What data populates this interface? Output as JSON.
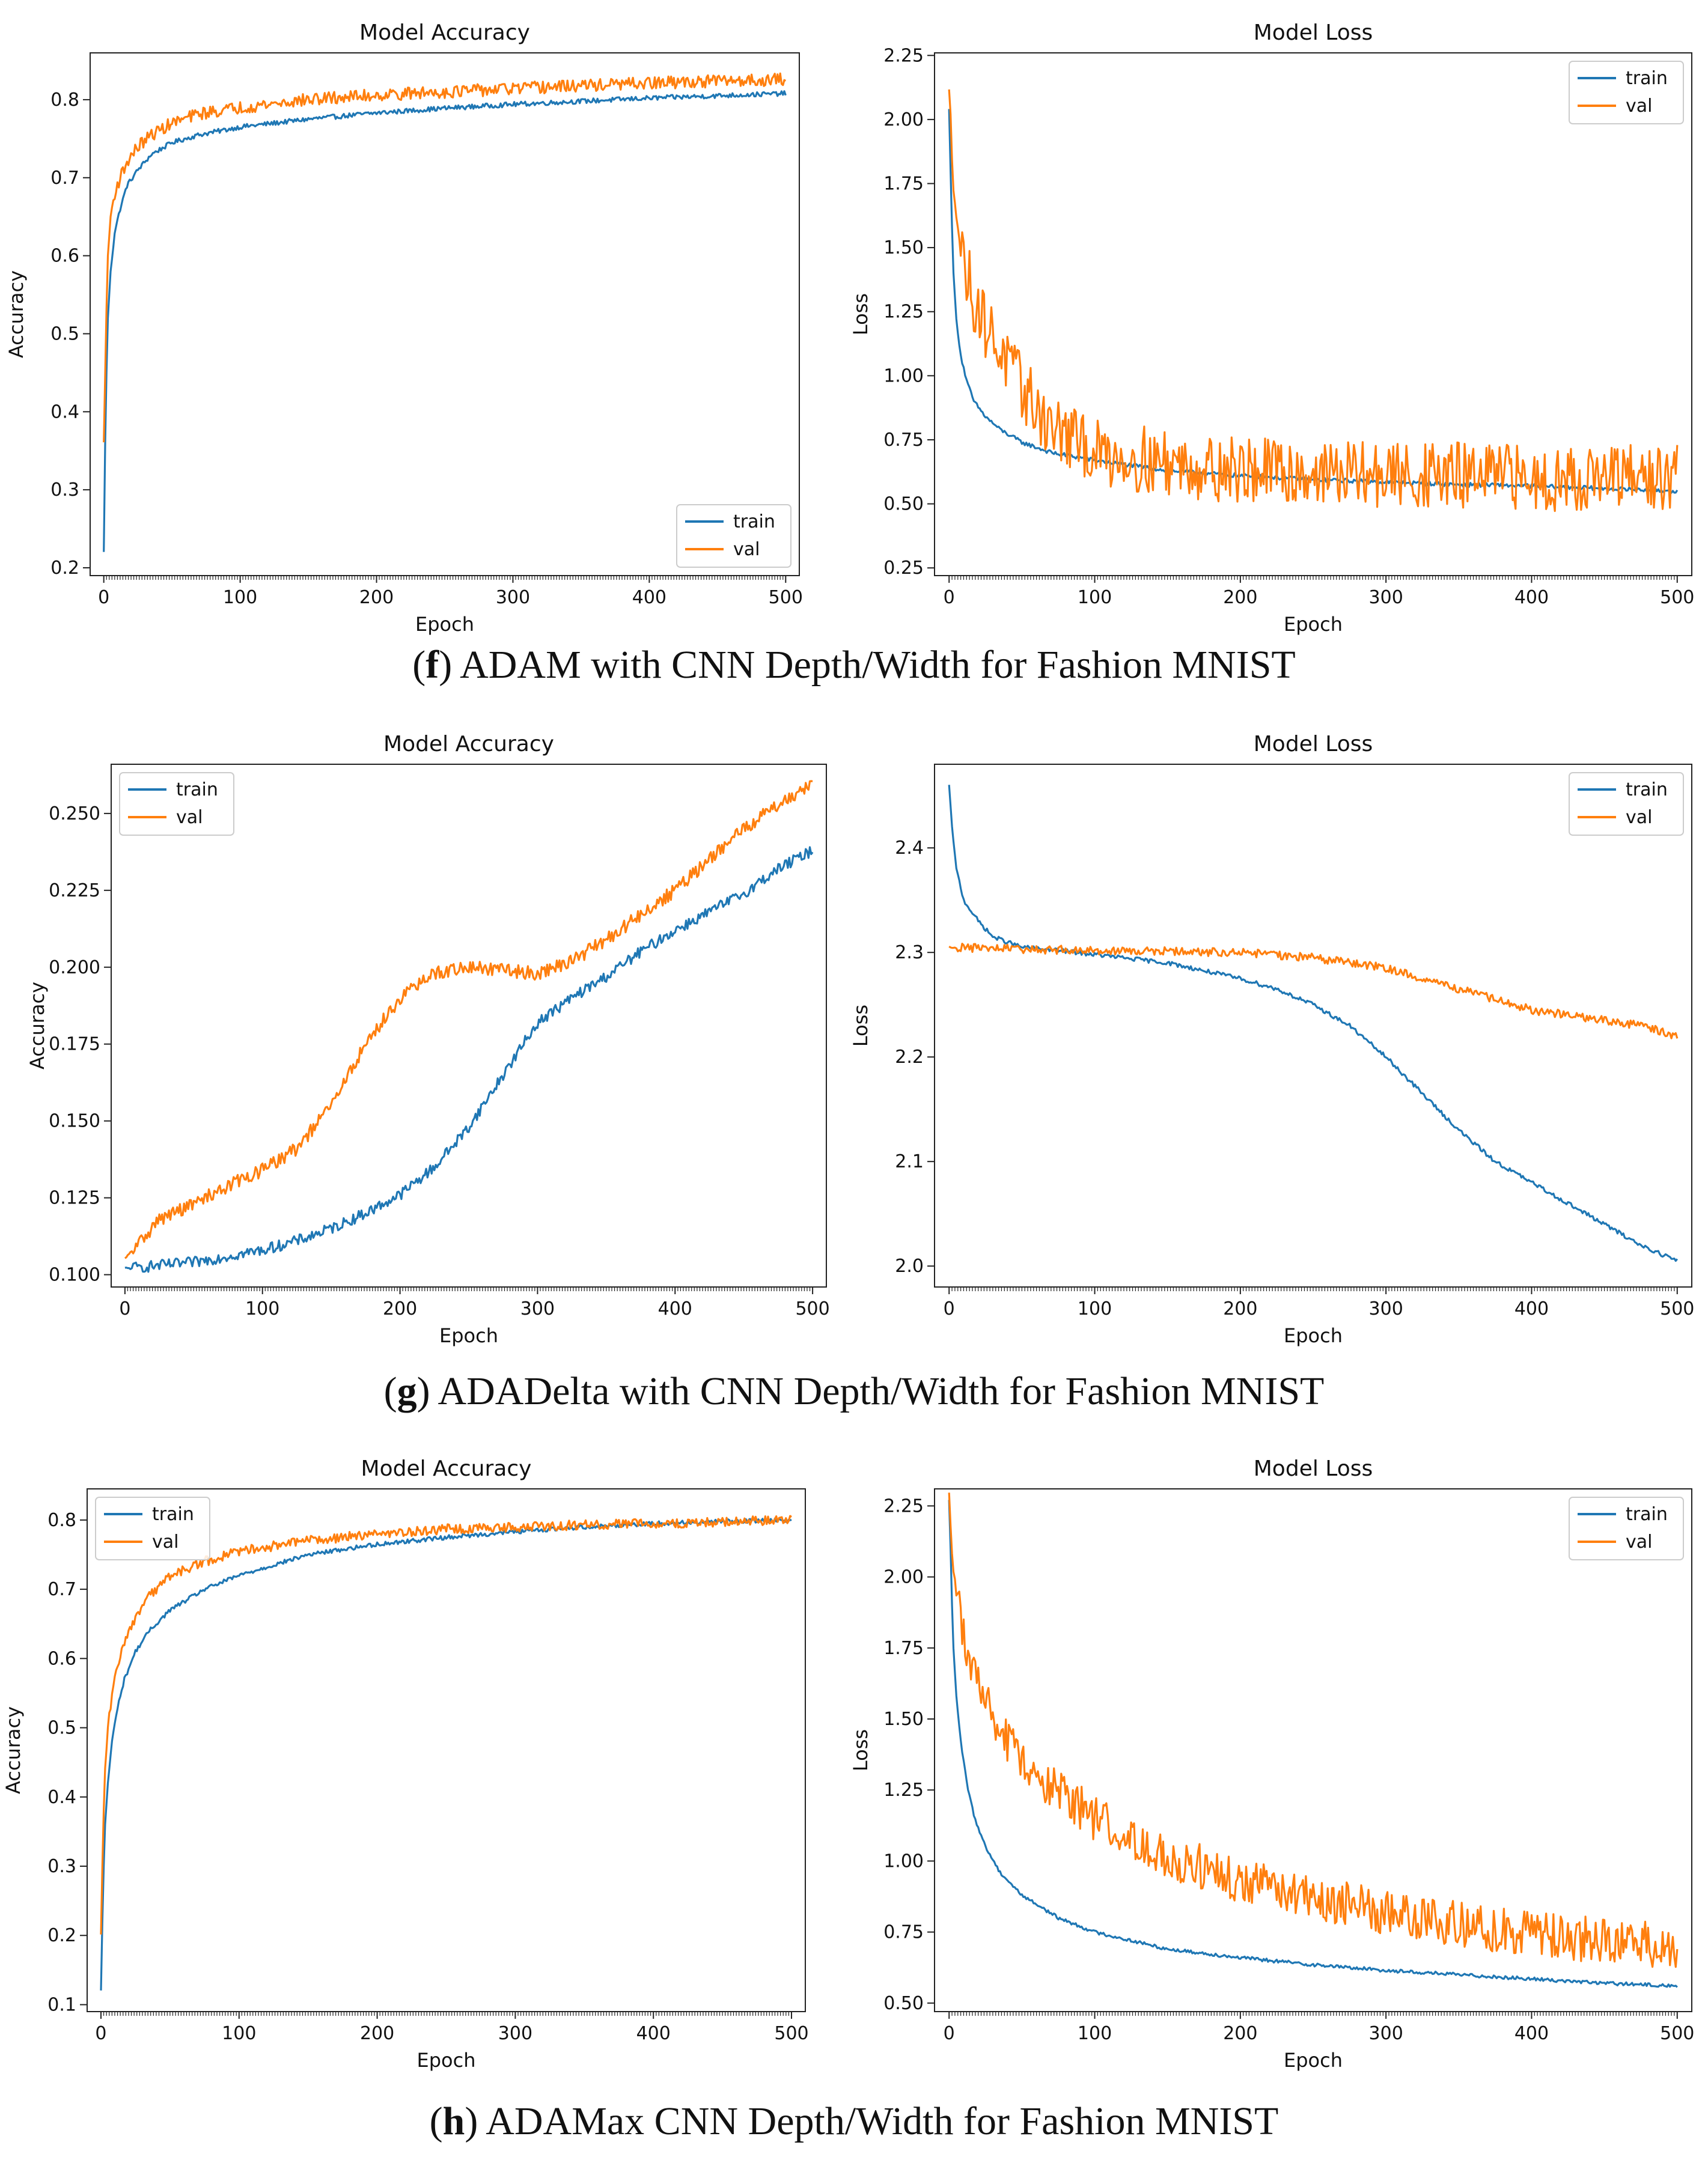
{
  "colors": {
    "train": "#1f77b4",
    "val": "#ff7f0e"
  },
  "chart_data": [
    {
      "type": "line",
      "title": "Model Accuracy",
      "xlabel": "Epoch",
      "ylabel": "Accuracy",
      "xlim": [
        -10,
        510
      ],
      "ylim": [
        0.19,
        0.86
      ],
      "xticks": [
        0,
        100,
        200,
        300,
        400,
        500
      ],
      "xtick_labels": [
        "0",
        "100",
        "200",
        "300",
        "400",
        "500"
      ],
      "yticks": [
        0.2,
        0.3,
        0.4,
        0.5,
        0.6,
        0.7,
        0.8
      ],
      "ytick_labels": [
        "0.2",
        "0.3",
        "0.4",
        "0.5",
        "0.6",
        "0.7",
        "0.8"
      ],
      "legend": "lower-right",
      "grid": false,
      "series": [
        {
          "name": "train",
          "color": "#1f77b4",
          "x": [
            0,
            1,
            2,
            3,
            5,
            8,
            12,
            17,
            25,
            35,
            50,
            70,
            100,
            150,
            200,
            250,
            300,
            350,
            400,
            450,
            500
          ],
          "y": [
            0.22,
            0.36,
            0.45,
            0.52,
            0.58,
            0.63,
            0.66,
            0.69,
            0.71,
            0.73,
            0.745,
            0.755,
            0.765,
            0.775,
            0.783,
            0.789,
            0.794,
            0.798,
            0.802,
            0.805,
            0.808
          ],
          "noise": 0.003
        },
        {
          "name": "val",
          "color": "#ff7f0e",
          "x": [
            0,
            1,
            2,
            3,
            5,
            8,
            12,
            17,
            25,
            35,
            50,
            70,
            100,
            150,
            200,
            250,
            300,
            350,
            400,
            450,
            500
          ],
          "y": [
            0.36,
            0.45,
            0.53,
            0.6,
            0.65,
            0.68,
            0.7,
            0.72,
            0.74,
            0.755,
            0.77,
            0.782,
            0.79,
            0.8,
            0.806,
            0.81,
            0.814,
            0.818,
            0.821,
            0.824,
            0.826
          ],
          "noise": 0.008
        }
      ],
      "caption": {
        "letter": "f",
        "text": " ADAM with CNN Depth/Width for Fashion MNIST"
      }
    },
    {
      "type": "line",
      "title": "Model Loss",
      "xlabel": "Epoch",
      "ylabel": "Loss",
      "xlim": [
        -10,
        510
      ],
      "ylim": [
        0.22,
        2.26
      ],
      "xticks": [
        0,
        100,
        200,
        300,
        400,
        500
      ],
      "xtick_labels": [
        "0",
        "100",
        "200",
        "300",
        "400",
        "500"
      ],
      "yticks": [
        0.25,
        0.5,
        0.75,
        1.0,
        1.25,
        1.5,
        1.75,
        2.0,
        2.25
      ],
      "ytick_labels": [
        "0.25",
        "0.50",
        "0.75",
        "1.00",
        "1.25",
        "1.50",
        "1.75",
        "2.00",
        "2.25"
      ],
      "legend": "top-right",
      "grid": false,
      "series": [
        {
          "name": "train",
          "color": "#1f77b4",
          "x": [
            0,
            1,
            2,
            3,
            5,
            8,
            12,
            17,
            25,
            35,
            50,
            70,
            100,
            150,
            200,
            250,
            300,
            350,
            400,
            450,
            500
          ],
          "y": [
            2.04,
            1.8,
            1.58,
            1.4,
            1.22,
            1.08,
            0.98,
            0.9,
            0.84,
            0.79,
            0.74,
            0.7,
            0.67,
            0.63,
            0.61,
            0.595,
            0.585,
            0.575,
            0.57,
            0.56,
            0.55
          ],
          "noise": 0.008
        },
        {
          "name": "val",
          "color": "#ff7f0e",
          "x": [
            0,
            1,
            2,
            3,
            5,
            8,
            12,
            17,
            25,
            35,
            50,
            70,
            100,
            150,
            200,
            250,
            300,
            350,
            400,
            450,
            500
          ],
          "y": [
            2.1,
            2.0,
            1.85,
            1.75,
            1.65,
            1.5,
            1.4,
            1.3,
            1.2,
            1.1,
            0.95,
            0.8,
            0.7,
            0.66,
            0.63,
            0.62,
            0.61,
            0.61,
            0.6,
            0.6,
            0.6
          ],
          "noise": 0.13
        }
      ]
    },
    {
      "type": "line",
      "title": "Model Accuracy",
      "xlabel": "Epoch",
      "ylabel": "Accuracy",
      "xlim": [
        -10,
        510
      ],
      "ylim": [
        0.096,
        0.266
      ],
      "xticks": [
        0,
        100,
        200,
        300,
        400,
        500
      ],
      "xtick_labels": [
        "0",
        "100",
        "200",
        "300",
        "400",
        "500"
      ],
      "yticks": [
        0.1,
        0.125,
        0.15,
        0.175,
        0.2,
        0.225,
        0.25
      ],
      "ytick_labels": [
        "0.100",
        "0.125",
        "0.150",
        "0.175",
        "0.200",
        "0.225",
        "0.250"
      ],
      "legend": "top-left",
      "grid": false,
      "series": [
        {
          "name": "train",
          "color": "#1f77b4",
          "x": [
            0,
            25,
            50,
            75,
            100,
            125,
            150,
            175,
            200,
            225,
            250,
            275,
            300,
            325,
            350,
            375,
            400,
            425,
            450,
            475,
            500
          ],
          "y": [
            0.102,
            0.103,
            0.104,
            0.106,
            0.108,
            0.111,
            0.115,
            0.12,
            0.126,
            0.135,
            0.148,
            0.165,
            0.182,
            0.19,
            0.197,
            0.205,
            0.212,
            0.218,
            0.224,
            0.232,
            0.238
          ],
          "noise": 0.0018
        },
        {
          "name": "val",
          "color": "#ff7f0e",
          "x": [
            0,
            25,
            50,
            75,
            100,
            125,
            150,
            175,
            200,
            225,
            250,
            275,
            300,
            325,
            350,
            375,
            400,
            425,
            450,
            475,
            500
          ],
          "y": [
            0.105,
            0.118,
            0.123,
            0.129,
            0.134,
            0.141,
            0.155,
            0.175,
            0.19,
            0.198,
            0.2,
            0.199,
            0.198,
            0.202,
            0.209,
            0.217,
            0.225,
            0.235,
            0.245,
            0.253,
            0.26
          ],
          "noise": 0.0022
        }
      ],
      "caption": {
        "letter": "g",
        "text": " ADADelta with CNN Depth/Width for Fashion MNIST"
      }
    },
    {
      "type": "line",
      "title": "Model Loss",
      "xlabel": "Epoch",
      "ylabel": "Loss",
      "xlim": [
        -10,
        510
      ],
      "ylim": [
        1.98,
        2.48
      ],
      "xticks": [
        0,
        100,
        200,
        300,
        400,
        500
      ],
      "xtick_labels": [
        "0",
        "100",
        "200",
        "300",
        "400",
        "500"
      ],
      "yticks": [
        2.0,
        2.1,
        2.2,
        2.3,
        2.4
      ],
      "ytick_labels": [
        "2.0",
        "2.1",
        "2.2",
        "2.3",
        "2.4"
      ],
      "legend": "top-right",
      "grid": false,
      "series": [
        {
          "name": "train",
          "color": "#1f77b4",
          "x": [
            0,
            2,
            5,
            10,
            20,
            30,
            50,
            75,
            100,
            150,
            200,
            225,
            250,
            275,
            300,
            325,
            350,
            375,
            400,
            425,
            450,
            475,
            500
          ],
          "y": [
            2.46,
            2.42,
            2.38,
            2.35,
            2.33,
            2.315,
            2.305,
            2.302,
            2.298,
            2.29,
            2.275,
            2.265,
            2.25,
            2.23,
            2.2,
            2.165,
            2.13,
            2.1,
            2.08,
            2.06,
            2.04,
            2.02,
            2.005
          ],
          "noise": 0.002
        },
        {
          "name": "val",
          "color": "#ff7f0e",
          "x": [
            0,
            25,
            50,
            100,
            150,
            200,
            250,
            275,
            300,
            325,
            350,
            375,
            400,
            425,
            450,
            475,
            500
          ],
          "y": [
            2.305,
            2.304,
            2.303,
            2.302,
            2.301,
            2.3,
            2.295,
            2.29,
            2.285,
            2.275,
            2.265,
            2.255,
            2.245,
            2.24,
            2.235,
            2.23,
            2.22
          ],
          "noise": 0.004
        }
      ]
    },
    {
      "type": "line",
      "title": "Model Accuracy",
      "xlabel": "Epoch",
      "ylabel": "Accuracy",
      "xlim": [
        -10,
        510
      ],
      "ylim": [
        0.09,
        0.845
      ],
      "xticks": [
        0,
        100,
        200,
        300,
        400,
        500
      ],
      "xtick_labels": [
        "0",
        "100",
        "200",
        "300",
        "400",
        "500"
      ],
      "yticks": [
        0.1,
        0.2,
        0.3,
        0.4,
        0.5,
        0.6,
        0.7,
        0.8
      ],
      "ytick_labels": [
        "0.1",
        "0.2",
        "0.3",
        "0.4",
        "0.5",
        "0.6",
        "0.7",
        "0.8"
      ],
      "legend": "top-left",
      "grid": false,
      "series": [
        {
          "name": "train",
          "color": "#1f77b4",
          "x": [
            0,
            1,
            2,
            3,
            5,
            8,
            12,
            17,
            25,
            35,
            50,
            75,
            100,
            150,
            200,
            250,
            300,
            350,
            400,
            450,
            500
          ],
          "y": [
            0.12,
            0.22,
            0.3,
            0.36,
            0.42,
            0.48,
            0.53,
            0.57,
            0.61,
            0.64,
            0.67,
            0.7,
            0.72,
            0.75,
            0.765,
            0.775,
            0.783,
            0.79,
            0.795,
            0.798,
            0.8
          ],
          "noise": 0.003
        },
        {
          "name": "val",
          "color": "#ff7f0e",
          "x": [
            0,
            1,
            2,
            3,
            5,
            8,
            12,
            17,
            25,
            35,
            50,
            75,
            100,
            150,
            200,
            250,
            300,
            350,
            400,
            450,
            500
          ],
          "y": [
            0.2,
            0.3,
            0.38,
            0.44,
            0.5,
            0.55,
            0.59,
            0.62,
            0.66,
            0.69,
            0.72,
            0.74,
            0.755,
            0.77,
            0.78,
            0.787,
            0.79,
            0.793,
            0.795,
            0.797,
            0.8
          ],
          "noise": 0.007
        }
      ],
      "caption": {
        "letter": "h",
        "text": " ADAMax CNN Depth/Width for Fashion MNIST"
      }
    },
    {
      "type": "line",
      "title": "Model Loss",
      "xlabel": "Epoch",
      "ylabel": "Loss",
      "xlim": [
        -10,
        510
      ],
      "ylim": [
        0.47,
        2.31
      ],
      "xticks": [
        0,
        100,
        200,
        300,
        400,
        500
      ],
      "xtick_labels": [
        "0",
        "100",
        "200",
        "300",
        "400",
        "500"
      ],
      "yticks": [
        0.5,
        0.75,
        1.0,
        1.25,
        1.5,
        1.75,
        2.0,
        2.25
      ],
      "ytick_labels": [
        "0.50",
        "0.75",
        "1.00",
        "1.25",
        "1.50",
        "1.75",
        "2.00",
        "2.25"
      ],
      "legend": "top-right",
      "grid": false,
      "series": [
        {
          "name": "train",
          "color": "#1f77b4",
          "x": [
            0,
            1,
            2,
            3,
            5,
            8,
            12,
            17,
            25,
            35,
            50,
            75,
            100,
            150,
            200,
            250,
            300,
            350,
            400,
            450,
            500
          ],
          "y": [
            2.27,
            2.1,
            1.9,
            1.75,
            1.58,
            1.42,
            1.28,
            1.16,
            1.05,
            0.96,
            0.88,
            0.8,
            0.75,
            0.69,
            0.66,
            0.635,
            0.615,
            0.6,
            0.585,
            0.57,
            0.56
          ],
          "noise": 0.006
        },
        {
          "name": "val",
          "color": "#ff7f0e",
          "x": [
            0,
            1,
            2,
            3,
            5,
            8,
            12,
            17,
            25,
            35,
            50,
            75,
            100,
            150,
            200,
            250,
            300,
            350,
            400,
            450,
            500
          ],
          "y": [
            2.28,
            2.2,
            2.1,
            2.02,
            1.95,
            1.85,
            1.75,
            1.65,
            1.55,
            1.45,
            1.35,
            1.25,
            1.15,
            1.02,
            0.93,
            0.87,
            0.82,
            0.78,
            0.74,
            0.72,
            0.7
          ],
          "noise": 0.08
        }
      ]
    }
  ]
}
